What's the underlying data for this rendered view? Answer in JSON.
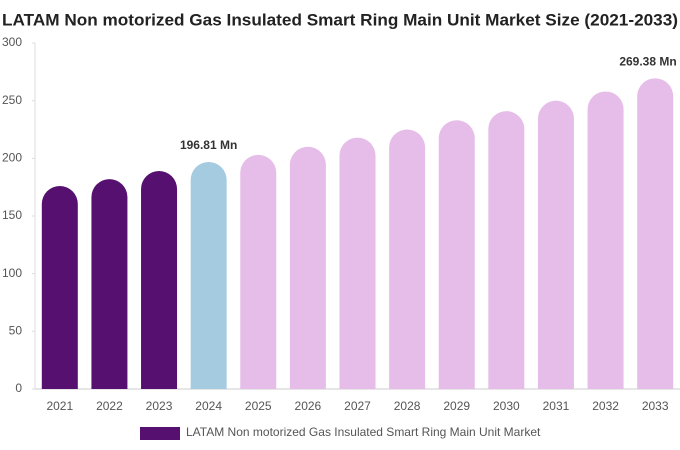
{
  "chart_data": {
    "type": "bar",
    "title": "LATAM Non motorized Gas Insulated Smart Ring Main Unit Market Size (2021-2033)",
    "categories": [
      "2021",
      "2022",
      "2023",
      "2024",
      "2025",
      "2026",
      "2027",
      "2028",
      "2029",
      "2030",
      "2031",
      "2032",
      "2033"
    ],
    "series": [
      {
        "name": "LATAM Non motorized Gas Insulated Smart Ring Main Unit Market",
        "color": "#561070",
        "values": [
          176,
          182,
          189,
          196.81,
          203,
          210,
          218,
          225,
          233,
          241,
          250,
          258,
          269.38
        ],
        "colors": [
          "#561070",
          "#561070",
          "#561070",
          "#a4cbe0",
          "#e6bde9",
          "#e6bde9",
          "#e6bde9",
          "#e6bde9",
          "#e6bde9",
          "#e6bde9",
          "#e6bde9",
          "#e6bde9",
          "#e6bde9"
        ],
        "value_labels": [
          null,
          null,
          null,
          "196.81 Mn",
          null,
          null,
          null,
          null,
          null,
          null,
          null,
          null,
          "269.38 Mn"
        ]
      }
    ],
    "ylim": [
      0,
      300
    ],
    "yticks": [
      0,
      50,
      100,
      150,
      200,
      250,
      300
    ],
    "grid": false
  }
}
